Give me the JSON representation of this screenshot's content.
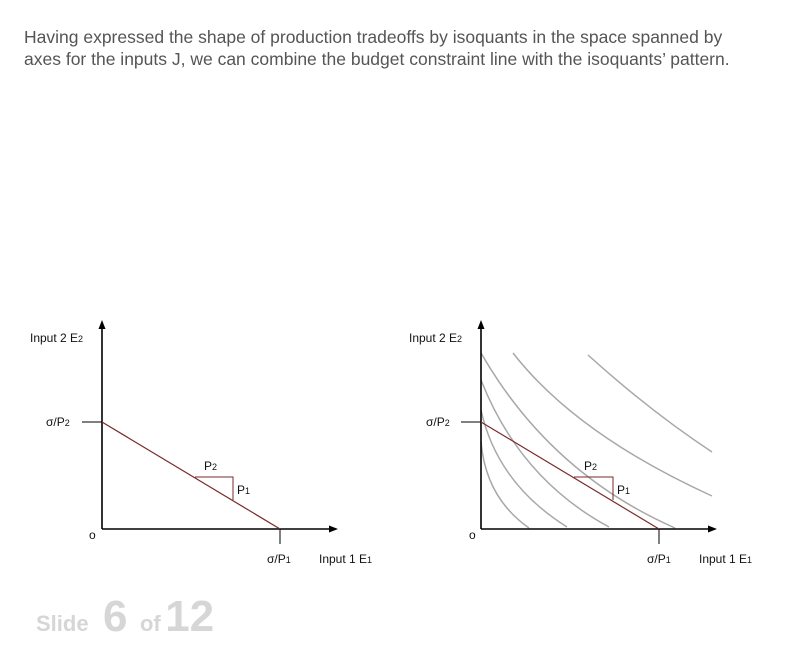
{
  "intro": {
    "line1": "Having expressed the shape of production tradeoffs by isoquants in the space spanned by",
    "line2": "axes for the inputs J, we can combine the budget constraint line with the isoquants’ pattern."
  },
  "diagram_left": {
    "y_axis_label": "Input 2 E",
    "y_axis_sub": "2",
    "x_axis_label": "Input 1 E",
    "x_axis_sub": "1",
    "y_intercept_label": "σ/P",
    "y_intercept_sub": "2",
    "x_intercept_label": "σ/P",
    "x_intercept_sub": "1",
    "slope_run_label": "P",
    "slope_run_sub": "2",
    "slope_rise_label": "P",
    "slope_rise_sub": "1",
    "origin_label": "o"
  },
  "diagram_right": {
    "y_axis_label": "Input 2 E",
    "y_axis_sub": "2",
    "x_axis_label": "Input 1 E",
    "x_axis_sub": "1",
    "y_intercept_label": "σ/P",
    "y_intercept_sub": "2",
    "x_intercept_label": "σ/P",
    "x_intercept_sub": "1",
    "slope_run_label": "P",
    "slope_run_sub": "2",
    "slope_rise_label": "P",
    "slope_rise_sub": "1",
    "origin_label": "o",
    "isoquant_count": 6
  },
  "colors": {
    "budget_line": "#7a2a2a",
    "axis": "#000000",
    "isoquant": "#a8a8a8",
    "slide_counter": "#d6d6d6"
  },
  "footer": {
    "slide_word": "Slide",
    "slide_number": "6",
    "of_word": "of",
    "slide_total": "12"
  }
}
